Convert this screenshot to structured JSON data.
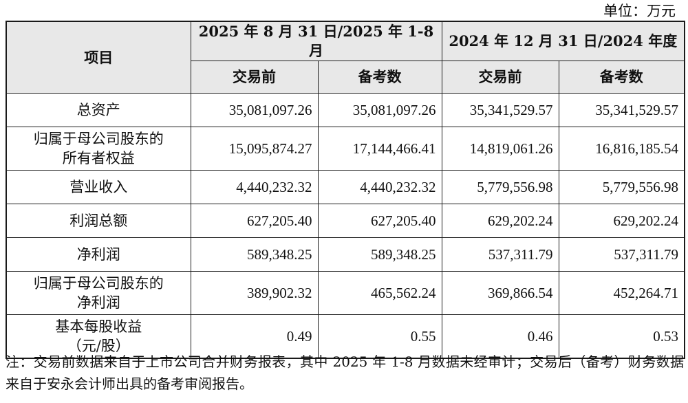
{
  "unit": "单位：万元",
  "header": {
    "item": "项目",
    "period1": "2025 年 8 月 31 日/2025 年 1-8 月",
    "period2": "2024 年 12 月 31 日/2024 年度",
    "sub1": "交易前",
    "sub2": "备考数",
    "sub3": "交易前",
    "sub4": "备考数"
  },
  "rows": [
    {
      "item": "总资产",
      "v1": "35,081,097.26",
      "v2": "35,081,097.26",
      "v3": "35,341,529.57",
      "v4": "35,341,529.57"
    },
    {
      "item_line1": "归属于母公司股东的",
      "item_line2": "所有者权益",
      "v1": "15,095,874.27",
      "v2": "17,144,466.41",
      "v3": "14,819,061.26",
      "v4": "16,816,185.54"
    },
    {
      "item": "营业收入",
      "v1": "4,440,232.32",
      "v2": "4,440,232.32",
      "v3": "5,779,556.98",
      "v4": "5,779,556.98"
    },
    {
      "item": "利润总额",
      "v1": "627,205.40",
      "v2": "627,205.40",
      "v3": "629,202.24",
      "v4": "629,202.24"
    },
    {
      "item": "净利润",
      "v1": "589,348.25",
      "v2": "589,348.25",
      "v3": "537,311.79",
      "v4": "537,311.79"
    },
    {
      "item_line1": "归属于母公司股东的",
      "item_line2": "净利润",
      "v1": "389,902.32",
      "v2": "465,562.24",
      "v3": "369,866.54",
      "v4": "452,264.71"
    },
    {
      "item_line1": "基本每股收益",
      "item_line2": "（元/股）",
      "v1": "0.49",
      "v2": "0.55",
      "v3": "0.46",
      "v4": "0.53"
    }
  ],
  "note": "注：交易前数据来自于上市公司合并财务报表，其中 2025 年 1-8 月数据未经审计；交易后（备考）财务数据来自于安永会计师出具的备考审阅报告。"
}
